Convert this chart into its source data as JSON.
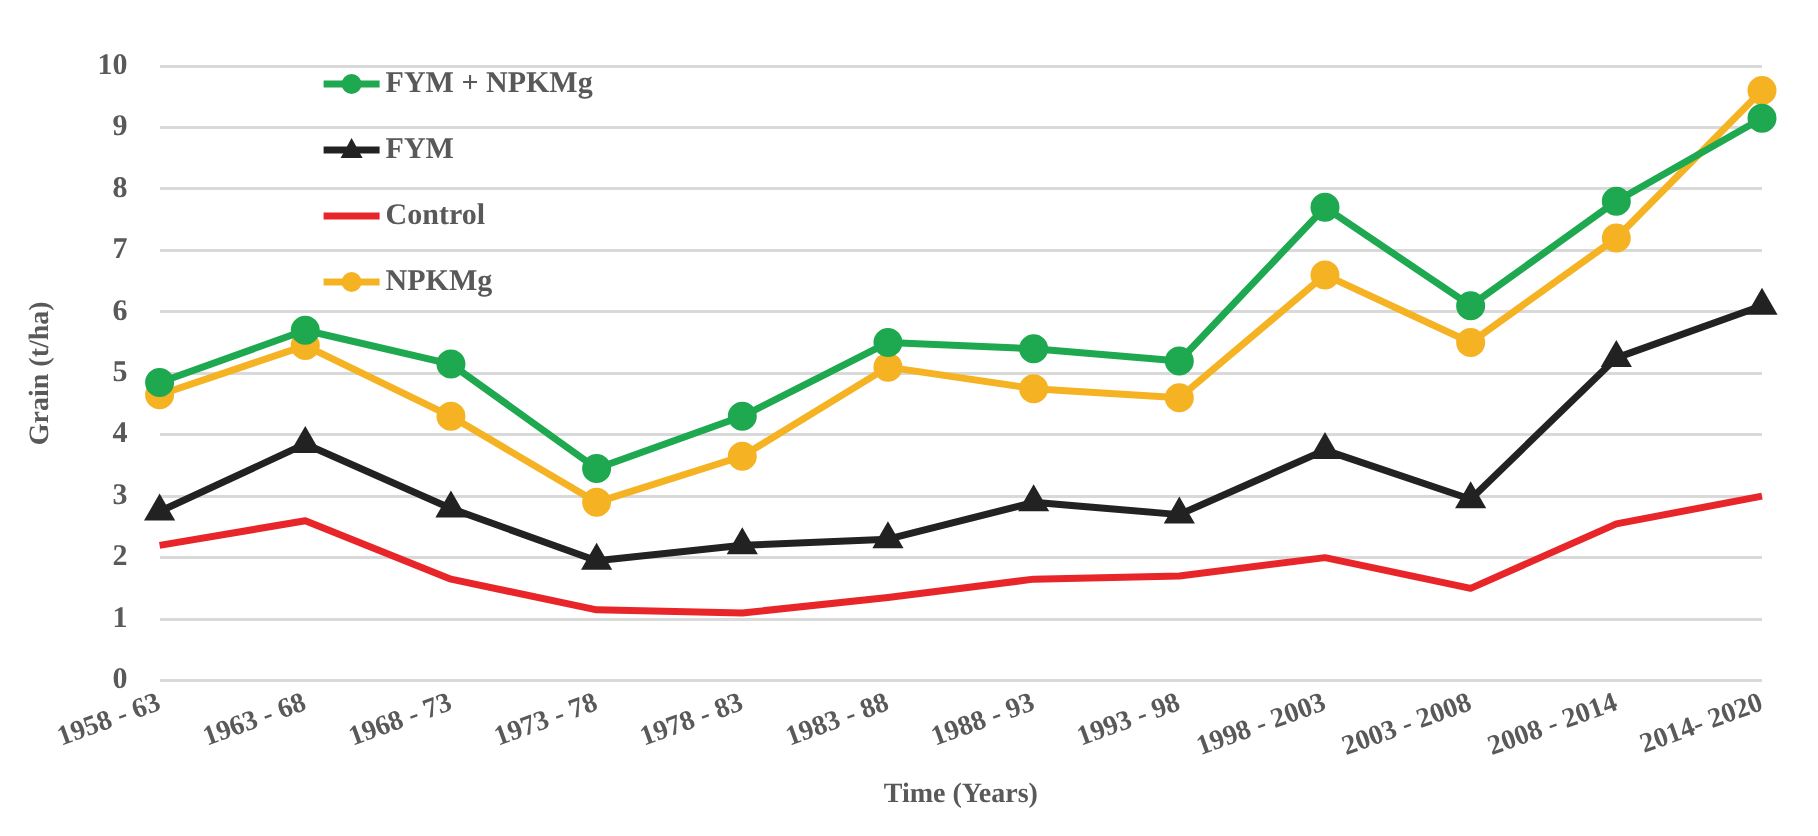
{
  "chart_data": {
    "type": "line",
    "xlabel": "Time (Years)",
    "ylabel": "Grain (t/ha)",
    "categories": [
      "1958 - 63",
      "1963 - 68",
      "1968 - 73",
      "1973 - 78",
      "1978 - 83",
      "1983 - 88",
      "1988 - 93",
      "1993 - 98",
      "1998 - 2003",
      "2003 - 2008",
      "2008 - 2014",
      "2014- 2020"
    ],
    "series": [
      {
        "name": "FYM + NPKMg",
        "color": "#1ea84f",
        "marker": "circle",
        "values": [
          4.85,
          5.7,
          5.15,
          3.45,
          4.3,
          5.5,
          5.4,
          5.2,
          7.7,
          6.1,
          7.8,
          9.15
        ]
      },
      {
        "name": "FYM",
        "color": "#222222",
        "marker": "triangle",
        "values": [
          2.75,
          3.85,
          2.8,
          1.95,
          2.2,
          2.3,
          2.9,
          2.7,
          3.75,
          2.95,
          5.25,
          6.1
        ]
      },
      {
        "name": "Control",
        "color": "#e8262a",
        "marker": "none",
        "values": [
          2.2,
          2.6,
          1.65,
          1.15,
          1.1,
          1.35,
          1.65,
          1.7,
          2.0,
          1.5,
          2.55,
          3.0
        ]
      },
      {
        "name": "NPKMg",
        "color": "#f5b323",
        "marker": "circle",
        "values": [
          4.65,
          5.45,
          4.3,
          2.9,
          3.65,
          5.1,
          4.75,
          4.6,
          6.6,
          5.5,
          7.2,
          9.6
        ]
      }
    ],
    "ylim": [
      0,
      10
    ],
    "yticks": [
      0,
      1,
      2,
      3,
      4,
      5,
      6,
      7,
      8,
      9,
      10
    ],
    "grid": "y",
    "legend": "top left"
  }
}
